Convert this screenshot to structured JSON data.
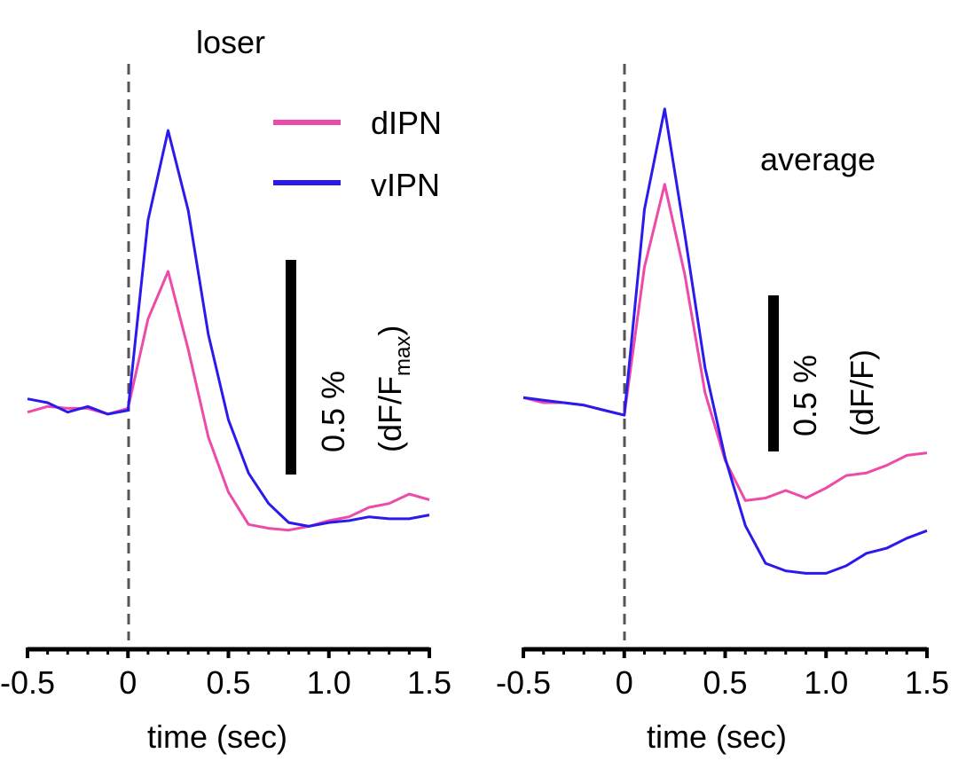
{
  "chart_data": [
    {
      "type": "line",
      "title": "loser",
      "xlabel": "time (sec)",
      "ylabel": "",
      "xlim": [
        -0.5,
        1.5
      ],
      "xticks": [
        -0.5,
        0,
        0.5,
        1.0,
        1.5
      ],
      "xtick_labels": [
        "-0.5",
        "0",
        "0.5",
        "1.0",
        "1.5"
      ],
      "ylim": [
        -1.2,
        1.9
      ],
      "grid": false,
      "legend_position": "top-right",
      "onset_marker": {
        "x": 0,
        "style": "dashed"
      },
      "scale_bar": {
        "value": 0.5,
        "labels": [
          "0.5 %",
          "(dF/F",
          "max",
          ")"
        ]
      },
      "series": [
        {
          "name": "dIPN",
          "color": "#ee4aa8",
          "x": [
            -0.5,
            -0.4,
            -0.3,
            -0.2,
            -0.1,
            0,
            0.1,
            0.2,
            0.3,
            0.4,
            0.5,
            0.6,
            0.7,
            0.8,
            0.9,
            1.0,
            1.1,
            1.2,
            1.3,
            1.4,
            1.5
          ],
          "y": [
            -0.01,
            0.02,
            0.01,
            0.01,
            -0.02,
            0.01,
            0.48,
            0.73,
            0.32,
            -0.14,
            -0.43,
            -0.6,
            -0.62,
            -0.63,
            -0.61,
            -0.58,
            -0.56,
            -0.51,
            -0.49,
            -0.44,
            -0.47
          ]
        },
        {
          "name": "vIPN",
          "color": "#2a1aec",
          "x": [
            -0.5,
            -0.4,
            -0.3,
            -0.2,
            -0.1,
            0,
            0.1,
            0.2,
            0.3,
            0.4,
            0.5,
            0.6,
            0.7,
            0.8,
            0.9,
            1.0,
            1.1,
            1.2,
            1.3,
            1.4,
            1.5
          ],
          "y": [
            0.06,
            0.04,
            -0.01,
            0.02,
            -0.02,
            0.0,
            1.0,
            1.47,
            1.05,
            0.4,
            -0.05,
            -0.33,
            -0.49,
            -0.59,
            -0.61,
            -0.59,
            -0.58,
            -0.56,
            -0.57,
            -0.57,
            -0.55
          ]
        }
      ]
    },
    {
      "type": "line",
      "title": "average",
      "xlabel": "time (sec)",
      "ylabel": "",
      "xlim": [
        -0.5,
        1.5
      ],
      "xticks": [
        -0.5,
        0,
        0.5,
        1.0,
        1.5
      ],
      "xtick_labels": [
        "-0.5",
        "0",
        "0.5",
        "1.0",
        "1.5"
      ],
      "ylim": [
        -0.85,
        1.5
      ],
      "grid": false,
      "onset_marker": {
        "x": 0,
        "style": "dashed"
      },
      "scale_bar": {
        "value": 0.5,
        "labels": [
          "0.5 %",
          "(dF/F)"
        ]
      },
      "series": [
        {
          "name": "dIPN",
          "color": "#ee4aa8",
          "x": [
            -0.5,
            -0.4,
            -0.3,
            -0.2,
            -0.1,
            0,
            0.1,
            0.2,
            0.3,
            0.4,
            0.5,
            0.6,
            0.7,
            0.8,
            0.9,
            1.0,
            1.1,
            1.2,
            1.3,
            1.4,
            1.5
          ],
          "y": [
            0.11,
            0.09,
            0.09,
            0.08,
            0.06,
            0.04,
            0.63,
            0.96,
            0.6,
            0.13,
            -0.14,
            -0.3,
            -0.29,
            -0.26,
            -0.29,
            -0.25,
            -0.2,
            -0.19,
            -0.16,
            -0.12,
            -0.11
          ]
        },
        {
          "name": "vIPN",
          "color": "#2a1aec",
          "x": [
            -0.5,
            -0.4,
            -0.3,
            -0.2,
            -0.1,
            0,
            0.1,
            0.2,
            0.3,
            0.4,
            0.5,
            0.6,
            0.7,
            0.8,
            0.9,
            1.0,
            1.1,
            1.2,
            1.3,
            1.4,
            1.5
          ],
          "y": [
            0.11,
            0.1,
            0.09,
            0.08,
            0.06,
            0.04,
            0.86,
            1.26,
            0.76,
            0.23,
            -0.13,
            -0.4,
            -0.55,
            -0.58,
            -0.59,
            -0.59,
            -0.56,
            -0.51,
            -0.49,
            -0.45,
            -0.42
          ]
        }
      ]
    }
  ]
}
